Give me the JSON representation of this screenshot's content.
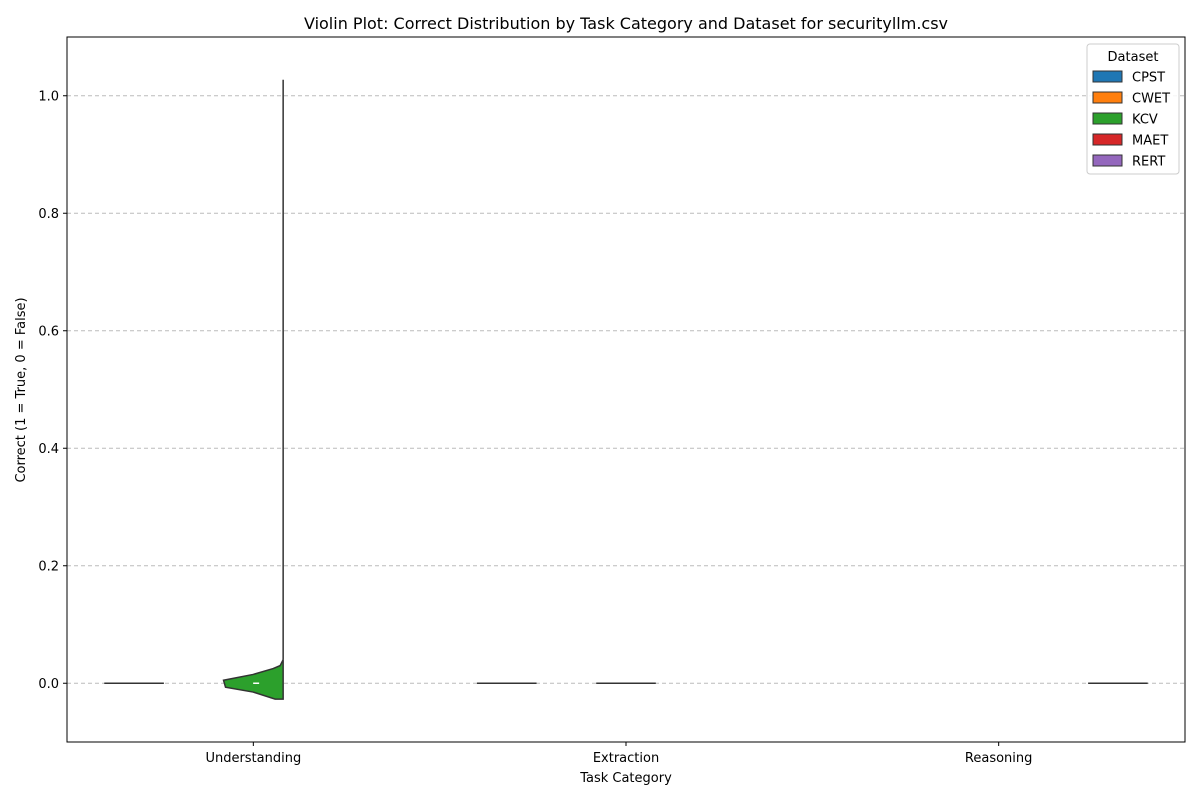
{
  "chart_data": {
    "type": "violin",
    "title": "Violin Plot: Correct Distribution by Task Category and Dataset for securityllm.csv",
    "xlabel": "Task Category",
    "ylabel": "Correct (1 = True, 0 = False)",
    "categories": [
      "Understanding",
      "Extraction",
      "Reasoning"
    ],
    "ylim": [
      -0.1,
      1.1
    ],
    "yticks": [
      "0.0",
      "0.2",
      "0.4",
      "0.6",
      "0.8",
      "1.0"
    ],
    "grid": "y-dashed",
    "legend": {
      "title": "Dataset",
      "placement": "top-right",
      "entries": [
        {
          "name": "CPST",
          "color": "#1f77b4"
        },
        {
          "name": "CWET",
          "color": "#ff7f0e"
        },
        {
          "name": "KCV",
          "color": "#2ca02c"
        },
        {
          "name": "MAET",
          "color": "#d62728"
        },
        {
          "name": "RERT",
          "color": "#9467bd"
        }
      ]
    },
    "series": [
      {
        "name": "CPST",
        "values": [
          0,
          0,
          null
        ],
        "kind": [
          "flat",
          "flat",
          "none"
        ]
      },
      {
        "name": "CWET",
        "values": [
          null,
          null,
          null
        ],
        "kind": [
          "none",
          "none",
          "none"
        ]
      },
      {
        "name": "KCV",
        "values": [
          0,
          0,
          null
        ],
        "kind": [
          "spread",
          "flat",
          "none"
        ],
        "max": [
          1.0,
          0,
          null
        ]
      },
      {
        "name": "MAET",
        "values": [
          null,
          null,
          null
        ],
        "kind": [
          "none",
          "none",
          "none"
        ]
      },
      {
        "name": "RERT",
        "values": [
          null,
          null,
          0
        ],
        "kind": [
          "none",
          "none",
          "flat"
        ]
      }
    ]
  }
}
